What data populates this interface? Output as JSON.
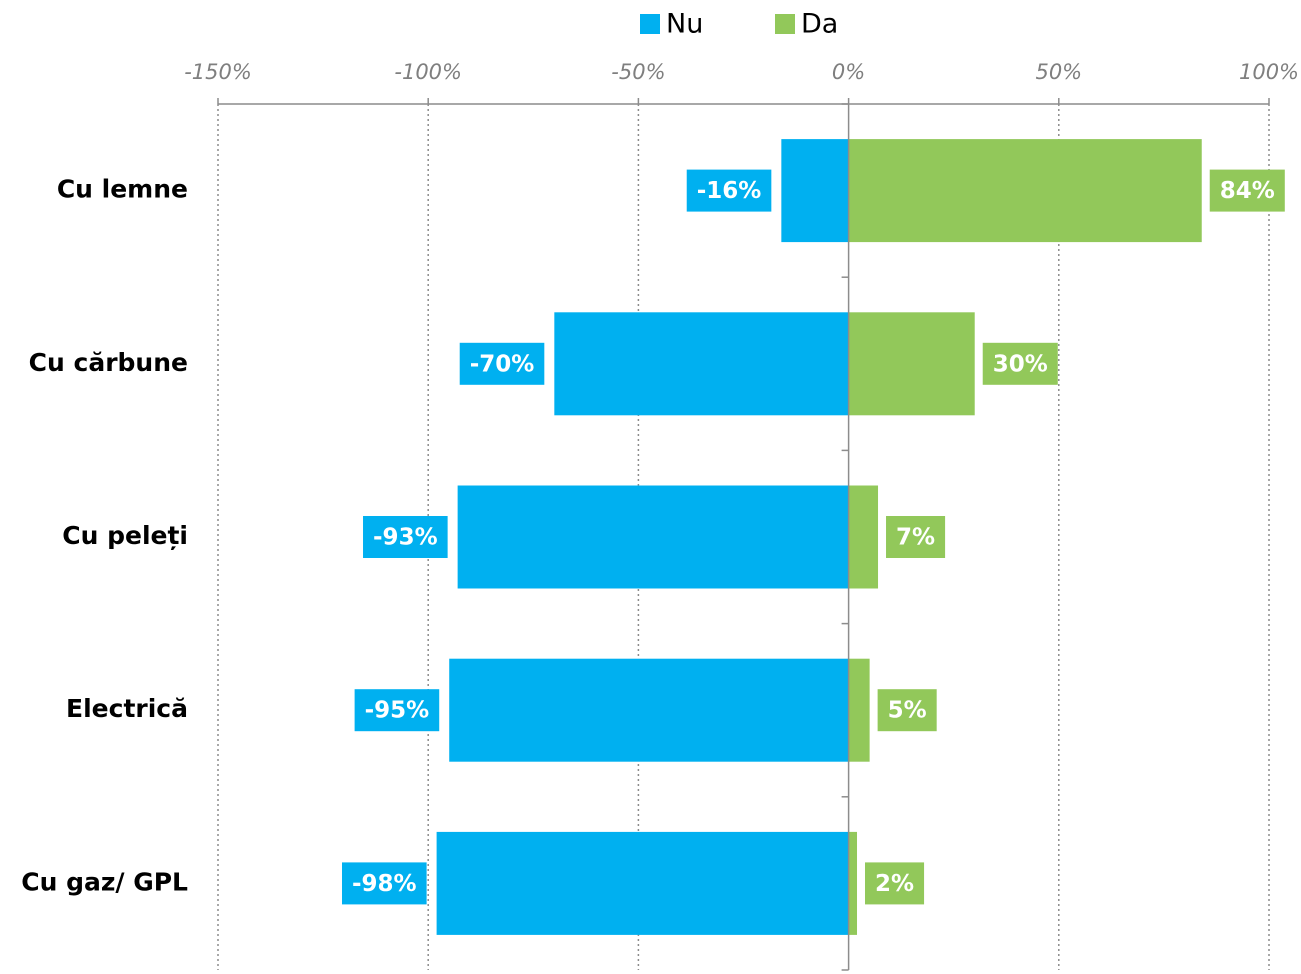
{
  "chart_data": {
    "type": "diverging-bar",
    "legend": "top",
    "categories": [
      "Cu lemne",
      "Cu cărbune",
      "Cu peleți",
      "Electrică",
      "Cu gaz/ GPL"
    ],
    "series": [
      {
        "name": "Nu",
        "color": "#00b0f0",
        "values": [
          -16,
          -70,
          -93,
          -95,
          -98
        ],
        "value_labels": [
          "-16%",
          "-70%",
          "-93%",
          "-95%",
          "-98%"
        ]
      },
      {
        "name": "Da",
        "color": "#92c85a",
        "values": [
          84,
          30,
          7,
          5,
          2
        ],
        "value_labels": [
          "84%",
          "30%",
          "7%",
          "5%",
          "2%"
        ]
      }
    ],
    "xlim": [
      -150,
      100
    ],
    "xticks": [
      {
        "value": -150,
        "label": "-150%"
      },
      {
        "value": -100,
        "label": "-100%"
      },
      {
        "value": -50,
        "label": "-50%"
      },
      {
        "value": 0,
        "label": "0%"
      },
      {
        "value": 50,
        "label": "50%"
      },
      {
        "value": 100,
        "label": "100%"
      }
    ],
    "grid": true
  }
}
